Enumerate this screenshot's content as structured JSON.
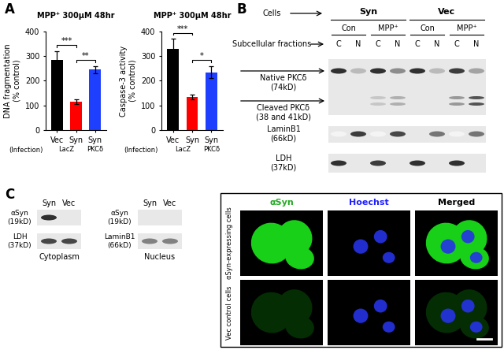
{
  "panel_labels": [
    "A",
    "B",
    "C"
  ],
  "chart_data": [
    {
      "type": "bar",
      "title": "MPP⁺ 300μM 48hr",
      "y_label": "DNA fragmentation\n(% control)",
      "categories": [
        "Vec",
        "Syn",
        "Syn"
      ],
      "values": [
        285,
        115,
        245
      ],
      "errors": [
        35,
        10,
        15
      ],
      "colors": [
        "#000000",
        "#ff0000",
        "#1f3fff"
      ],
      "ylim": [
        0,
        400
      ],
      "yticks": [
        0,
        100,
        200,
        300,
        400
      ],
      "infection": {
        "label": "(Infection)",
        "groups": [
          {
            "text": "LacZ",
            "first": 0,
            "last": 1
          },
          {
            "text": "PKCδ",
            "first": 2,
            "last": 2
          }
        ]
      },
      "significance": [
        {
          "text": "***",
          "first": 0,
          "last": 1
        },
        {
          "text": "**",
          "first": 1,
          "last": 2
        }
      ]
    },
    {
      "type": "bar",
      "title": "MPP⁺ 300μM 48hr",
      "y_label": "Caspase-3 activity\n(% control)",
      "categories": [
        "Vec",
        "Syn",
        "Syn"
      ],
      "values": [
        330,
        135,
        235
      ],
      "errors": [
        40,
        10,
        25
      ],
      "colors": [
        "#000000",
        "#ff0000",
        "#1f3fff"
      ],
      "ylim": [
        0,
        400
      ],
      "yticks": [
        0,
        100,
        200,
        300,
        400
      ],
      "infection": {
        "label": "(Infection)",
        "groups": [
          {
            "text": "LacZ",
            "first": 0,
            "last": 1
          },
          {
            "text": "PKCδ",
            "first": 2,
            "last": 2
          }
        ]
      },
      "significance": [
        {
          "text": "***",
          "first": 0,
          "last": 1
        },
        {
          "text": "*",
          "first": 1,
          "last": 2
        }
      ]
    }
  ],
  "blot_b": {
    "header": {
      "label": "Cells",
      "groups": [
        {
          "text": "Syn",
          "lanes": [
            0,
            3
          ]
        },
        {
          "text": "Vec",
          "lanes": [
            4,
            7
          ]
        }
      ]
    },
    "treatments": [
      {
        "text": "Con",
        "lanes": [
          0,
          1
        ]
      },
      {
        "text": "MPP⁺",
        "lanes": [
          2,
          3
        ]
      },
      {
        "text": "Con",
        "lanes": [
          4,
          5
        ]
      },
      {
        "text": "MPP⁺",
        "lanes": [
          6,
          7
        ]
      }
    ],
    "fractions": {
      "label": "Subcellular fractions",
      "lanes": [
        "C",
        "N",
        "C",
        "N",
        "C",
        "N",
        "C",
        "N"
      ]
    },
    "rows": [
      {
        "label": "Native PKCδ\n(74kD)",
        "intensities": [
          0.9,
          0.3,
          0.9,
          0.5,
          0.9,
          0.3,
          0.85,
          0.4
        ]
      },
      {
        "label": "Cleaved PKCδ\n(38 and 41kD)",
        "intensities": [
          0.0,
          0.0,
          0.25,
          0.35,
          0.0,
          0.0,
          0.45,
          0.75
        ]
      },
      {
        "label": "LaminB1\n(66kD)",
        "intensities": [
          0.05,
          0.85,
          0.05,
          0.8,
          0.1,
          0.6,
          0.05,
          0.6
        ]
      },
      {
        "label": "LDH\n(37kD)",
        "intensities": [
          0.9,
          0.0,
          0.85,
          0.0,
          0.9,
          0.0,
          0.9,
          0.0
        ]
      }
    ]
  },
  "blot_c": [
    {
      "caption": "Cytoplasm",
      "lanes": [
        "Syn",
        "Vec"
      ],
      "rows": [
        {
          "label": "αSyn\n(19kD)",
          "intensities": [
            0.9,
            0.0
          ]
        },
        {
          "label": "LDH\n(37kD)",
          "intensities": [
            0.8,
            0.8
          ]
        }
      ]
    },
    {
      "caption": "Nucleus",
      "lanes": [
        "Syn",
        "Vec"
      ],
      "rows": [
        {
          "label": "αSyn\n(19kD)",
          "intensities": [
            0.0,
            0.0
          ]
        },
        {
          "label": "LaminB1\n(66kD)",
          "intensities": [
            0.55,
            0.55
          ]
        }
      ]
    }
  ],
  "microscopy": {
    "columns": [
      {
        "text": "αSyn",
        "color": "#22aa22"
      },
      {
        "text": "Hoechst",
        "color": "#1f1fff"
      },
      {
        "text": "Merged",
        "color": "#000000"
      }
    ],
    "rows": [
      {
        "label": "αSyn-expressing cells",
        "signal": 0.9
      },
      {
        "label": "Vec control cells",
        "signal": 0.15
      }
    ]
  }
}
